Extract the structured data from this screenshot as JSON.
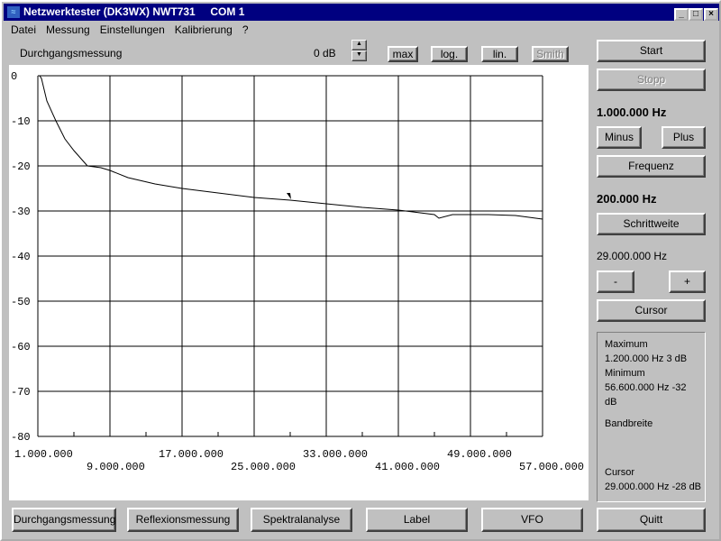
{
  "window": {
    "title": "Netzwerktester (DK3WX) NWT731     COM 1"
  },
  "menu": [
    "Datei",
    "Messung",
    "Einstellungen",
    "Kalibrierung",
    "?"
  ],
  "toolbar": {
    "mode": "Durchgangsmessung",
    "offset": "0 dB",
    "max": "max",
    "log": "log.",
    "lin": "lin.",
    "smith": "Smith"
  },
  "side": {
    "start": "Start",
    "stopp": "Stopp",
    "freq": "1.000.000 Hz",
    "minus": "Minus",
    "plus": "Plus",
    "frequenz": "Frequenz",
    "step": "200.000 Hz",
    "schrittweite": "Schrittweite",
    "cursor_freq": "29.000.000 Hz",
    "dec": "-",
    "inc": "+",
    "cursor": "Cursor"
  },
  "info": {
    "max_label": "Maximum",
    "max_val": "1.200.000 Hz 3 dB",
    "min_label": "Minimum",
    "min_val": "56.600.000 Hz -32 dB",
    "bw_label": "Bandbreite",
    "cursor_label": "Cursor",
    "cursor_val": "29.000.000 Hz -28 dB"
  },
  "bottom": [
    "Durchgangsmessung",
    "Reflexionsmessung",
    "Spektralanalyse",
    "Label",
    "VFO",
    "Quitt"
  ],
  "chart_data": {
    "type": "line",
    "xlim": [
      1000000,
      57000000
    ],
    "ylim": [
      -80,
      0
    ],
    "grid": true,
    "yticks": [
      "0",
      "-10",
      "-20",
      "-30",
      "-40",
      "-50",
      "-60",
      "-70",
      "-80"
    ],
    "xticks": [
      "1.000.000",
      "9.000.000",
      "17.000.000",
      "25.000.000",
      "33.000.000",
      "41.000.000",
      "49.000.000",
      "57.000.000"
    ],
    "cursor": {
      "x": 29000000,
      "y": -28
    },
    "series": [
      {
        "color": "#000000",
        "x": [
          1.2,
          1.4,
          2,
          3,
          4,
          5,
          6.5,
          8,
          9,
          11,
          14,
          17,
          21,
          25,
          29,
          33,
          37,
          41,
          45,
          45.5,
          47,
          51,
          54,
          57
        ],
        "y": [
          0,
          -0.6,
          -5.6,
          -10,
          -14,
          -16.6,
          -20,
          -20.4,
          -21,
          -22.6,
          -24,
          -25,
          -26,
          -27,
          -27.6,
          -28.4,
          -29.2,
          -29.8,
          -30.8,
          -31.6,
          -30.8,
          -30.8,
          -31,
          -31.8
        ]
      }
    ]
  }
}
